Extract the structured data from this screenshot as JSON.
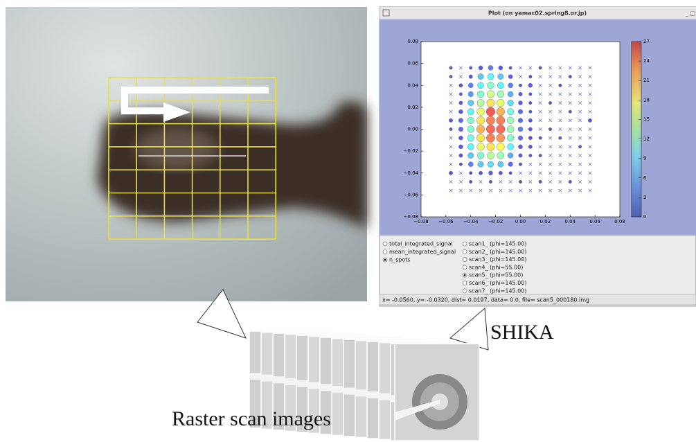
{
  "window_title": "Plot (on yamac02.spring8.or.jp)",
  "chart_data": {
    "type": "scatter",
    "x": [
      -0.056,
      -0.048,
      -0.04,
      -0.032,
      -0.024,
      -0.016,
      -0.008,
      0.0,
      0.008,
      0.016,
      0.024,
      0.032,
      0.04,
      0.048,
      0.056
    ],
    "y": [
      0.056,
      0.048,
      0.04,
      0.032,
      0.024,
      0.016,
      0.008,
      0.0,
      -0.008,
      -0.016,
      -0.024,
      -0.032,
      -0.04,
      -0.048,
      -0.056
    ],
    "values": [
      [
        1,
        0,
        1,
        3,
        5,
        3,
        1,
        0,
        0,
        1,
        0,
        0,
        0,
        0,
        0
      ],
      [
        1,
        0,
        2,
        8,
        10,
        8,
        3,
        0,
        1,
        0,
        0,
        0,
        1,
        0,
        0
      ],
      [
        0,
        2,
        5,
        10,
        12,
        10,
        5,
        1,
        3,
        0,
        0,
        1,
        0,
        0,
        0
      ],
      [
        0,
        1,
        6,
        12,
        15,
        13,
        7,
        2,
        1,
        0,
        0,
        0,
        0,
        0,
        0
      ],
      [
        0,
        2,
        8,
        14,
        18,
        16,
        9,
        3,
        1,
        0,
        1,
        0,
        0,
        0,
        0
      ],
      [
        0,
        3,
        10,
        16,
        24,
        20,
        11,
        4,
        1,
        0,
        0,
        0,
        1,
        0,
        0
      ],
      [
        2,
        4,
        12,
        18,
        22,
        22,
        13,
        4,
        2,
        0,
        0,
        0,
        0,
        0,
        2
      ],
      [
        1,
        4,
        12,
        20,
        23,
        23,
        13,
        5,
        2,
        0,
        1,
        0,
        0,
        0,
        0
      ],
      [
        0,
        3,
        11,
        18,
        22,
        21,
        12,
        4,
        2,
        1,
        0,
        1,
        0,
        0,
        0
      ],
      [
        0,
        3,
        10,
        16,
        18,
        17,
        10,
        3,
        2,
        0,
        0,
        0,
        0,
        1,
        0
      ],
      [
        0,
        2,
        8,
        12,
        14,
        13,
        7,
        2,
        1,
        1,
        0,
        0,
        0,
        0,
        0
      ],
      [
        0,
        1,
        5,
        8,
        9,
        8,
        4,
        1,
        0,
        0,
        0,
        0,
        0,
        0,
        0
      ],
      [
        2,
        0,
        1,
        2,
        3,
        2,
        1,
        0,
        0,
        0,
        0,
        0,
        0,
        0,
        0
      ],
      [
        0,
        0,
        1,
        0,
        1,
        0,
        0,
        1,
        0,
        1,
        0,
        0,
        1,
        0,
        0
      ],
      [
        0,
        0,
        0,
        0,
        0,
        0,
        0,
        0,
        0,
        0,
        0,
        0,
        0,
        0,
        0
      ]
    ],
    "xlim": [
      -0.08,
      0.08
    ],
    "ylim": [
      -0.08,
      0.08
    ],
    "xticks": [
      {
        "value": -0.08,
        "label": "−0.08"
      },
      {
        "value": -0.06,
        "label": "−0.06"
      },
      {
        "value": -0.04,
        "label": "−0.04"
      },
      {
        "value": -0.02,
        "label": "−0.02"
      },
      {
        "value": 0,
        "label": "0.00"
      },
      {
        "value": 0.02,
        "label": "0.02"
      },
      {
        "value": 0.04,
        "label": "0.04"
      },
      {
        "value": 0.06,
        "label": "0.06"
      },
      {
        "value": 0.08,
        "label": "0.08"
      }
    ],
    "yticks": [
      {
        "value": -0.08,
        "label": "−0.08"
      },
      {
        "value": -0.06,
        "label": "−0.06"
      },
      {
        "value": -0.04,
        "label": "−0.04"
      },
      {
        "value": -0.02,
        "label": "−0.02"
      },
      {
        "value": 0,
        "label": "0.00"
      },
      {
        "value": 0.02,
        "label": "0.02"
      },
      {
        "value": 0.04,
        "label": "0.04"
      },
      {
        "value": 0.06,
        "label": "0.06"
      },
      {
        "value": 0.08,
        "label": "0.08"
      }
    ],
    "clim": [
      0,
      27
    ],
    "cticks": [
      0,
      3,
      6,
      9,
      12,
      15,
      18,
      21,
      24,
      27
    ]
  },
  "options_left": [
    "total_integrated_signal",
    "mean_integrated_signal",
    "n_spots"
  ],
  "selected_left": 2,
  "options_right": [
    "scan1_ (phi=145.00)",
    "scan2_ (phi=145.00)",
    "scan3_ (phi=145.00)",
    "scan4_ (phi=55.00)",
    "scan5_ (phi=55.00)",
    "scan6_ (phi=145.00)",
    "scan7_ (phi=145.00)"
  ],
  "selected_right": 4,
  "status": "x= -0.0560, y= -0.0320, dist= 0.0197, data= 0.0, file= scan5_000180.img",
  "label_shika": "SHIKA",
  "label_raster": "Raster scan images"
}
